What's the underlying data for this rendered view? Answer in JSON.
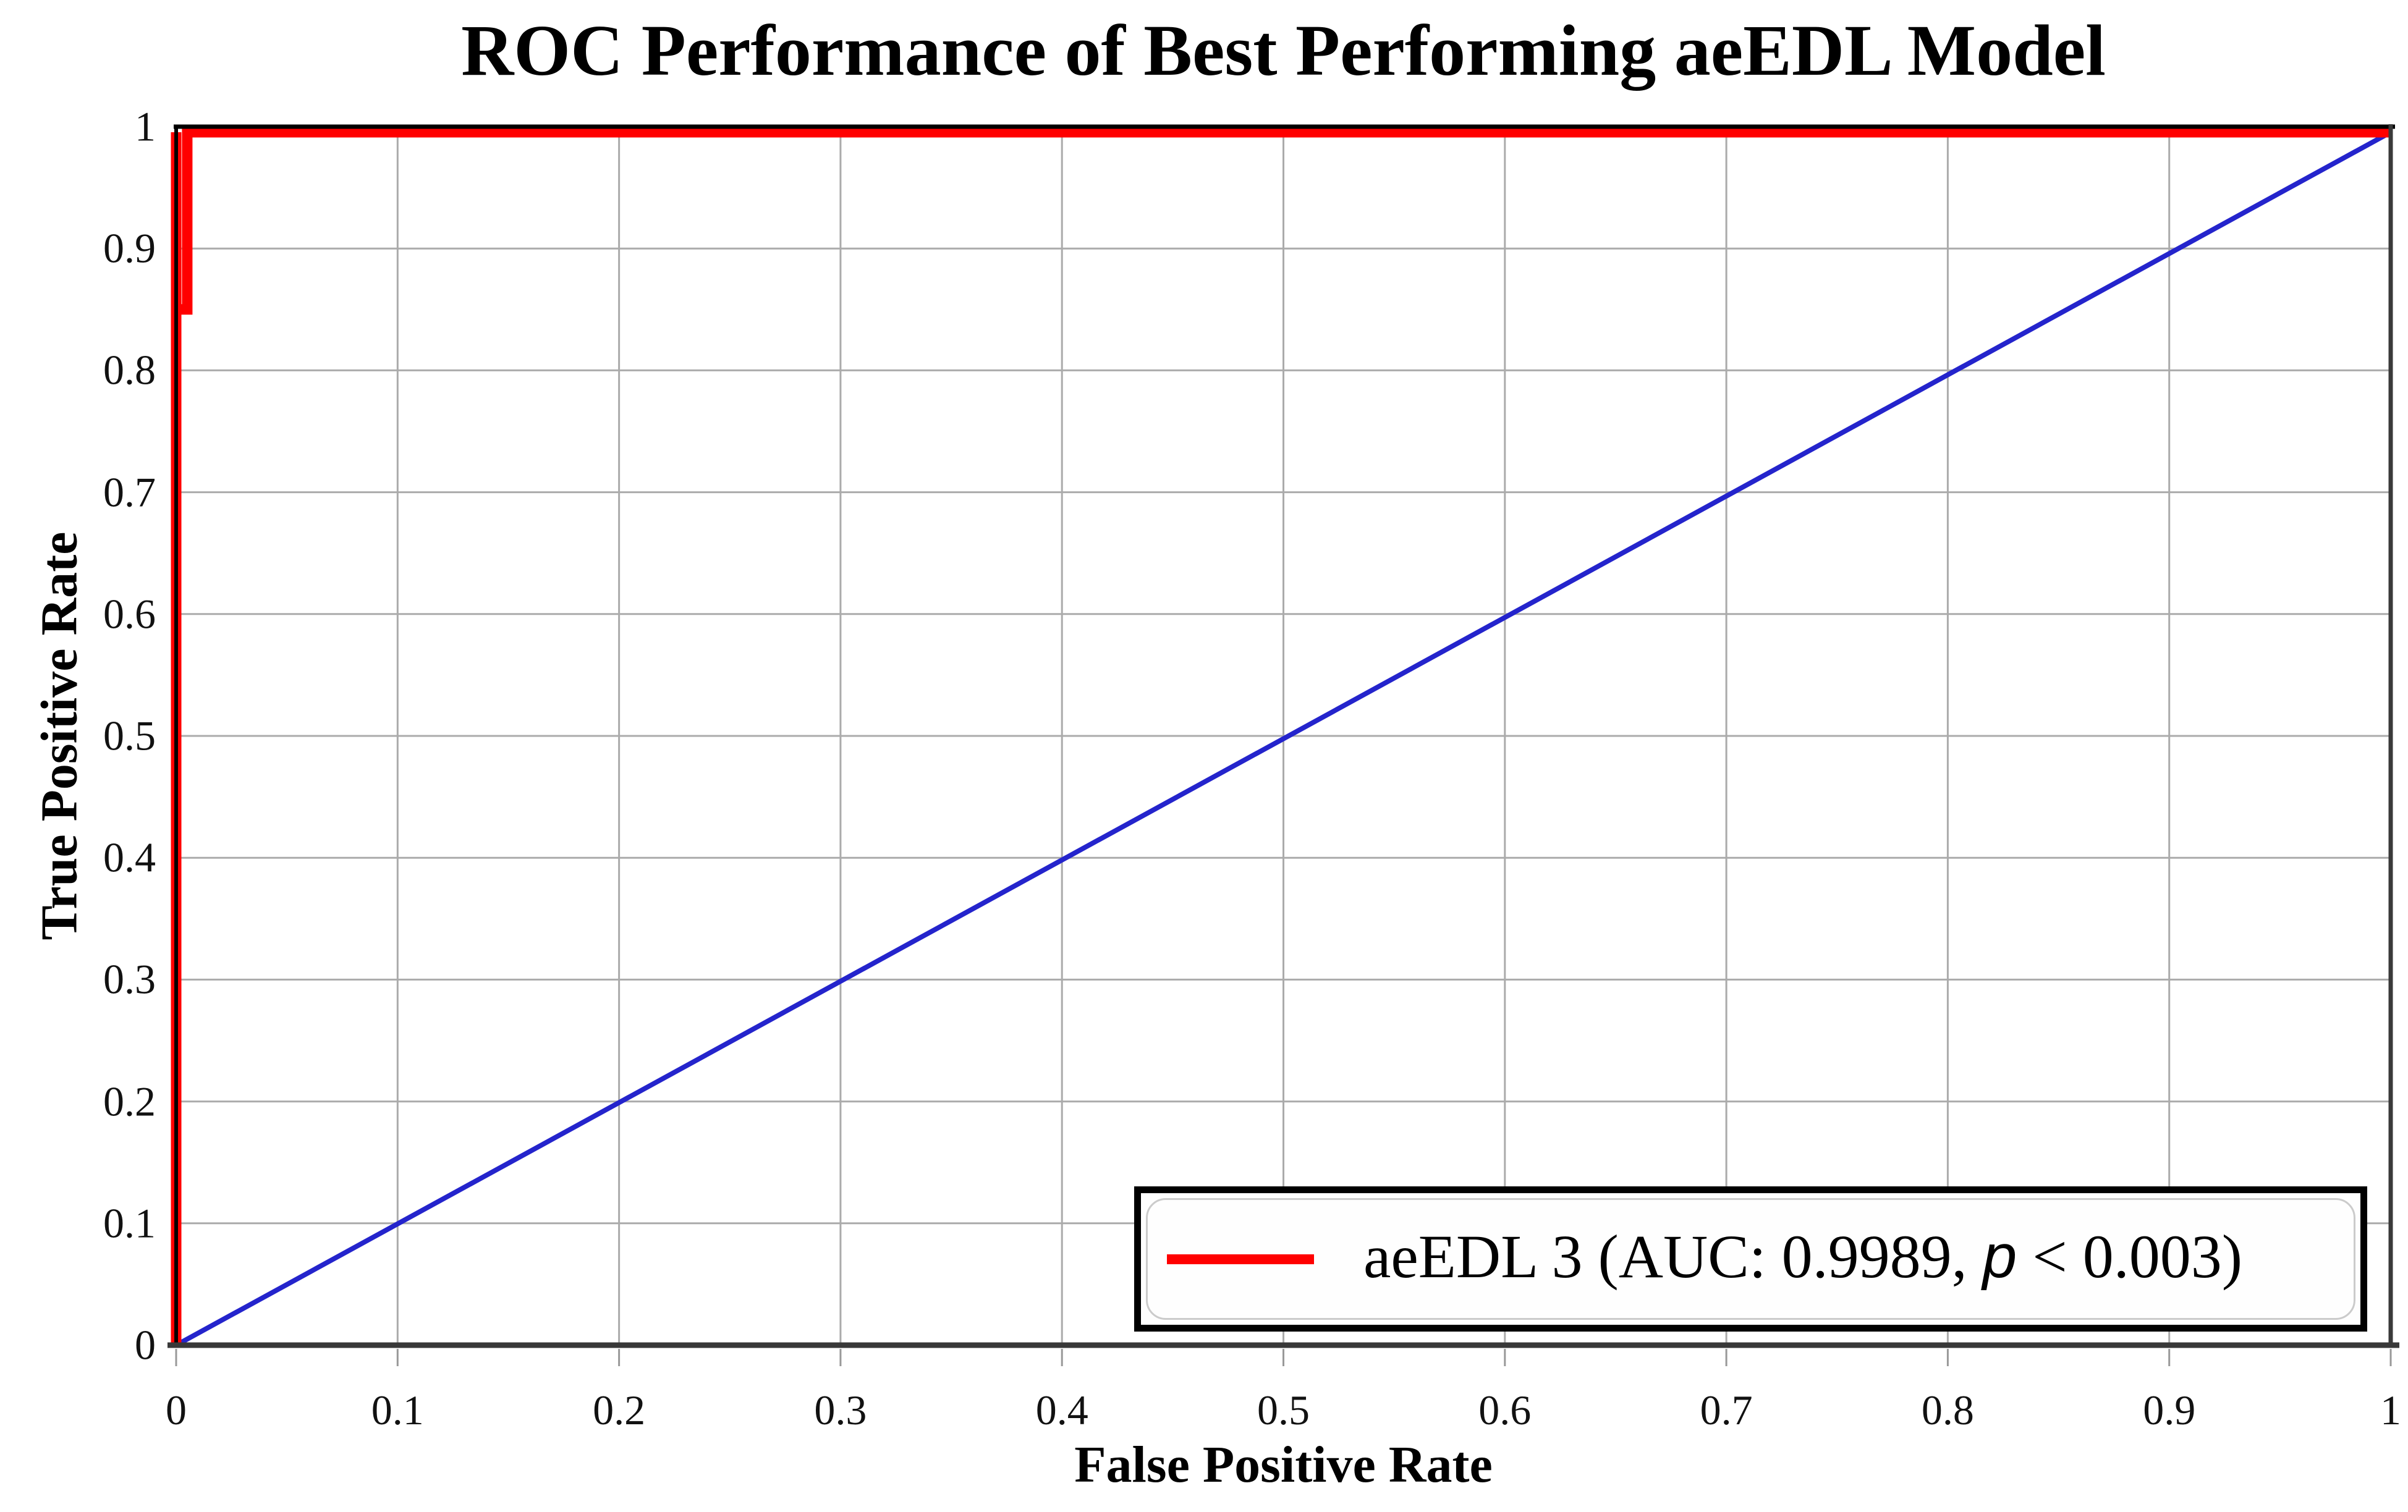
{
  "title": "ROC Performance of Best Performing aeEDL Model",
  "axes": {
    "x_label": "False Positive Rate",
    "y_label": "True Positive Rate"
  },
  "legend": {
    "series_label_pre": "aeEDL 3 (AUC: 0.9989, ",
    "p_symbol": "p",
    "series_label_post": " < 0.003)",
    "full_label": "aeEDL 3 (AUC: 0.9989, p < 0.003)",
    "line_color": "#ff0000"
  },
  "chart_data": {
    "type": "line",
    "title": "ROC Performance of Best Performing aeEDL Model",
    "xlabel": "False Positive Rate",
    "ylabel": "True Positive Rate",
    "xlim": [
      0,
      1
    ],
    "ylim": [
      0,
      1
    ],
    "x_tick_labels": [
      "0",
      "0.1",
      "0.2",
      "0.3",
      "0.4",
      "0.5",
      "0.6",
      "0.7",
      "0.8",
      "0.9",
      "1"
    ],
    "y_tick_labels": [
      "0",
      "0.1",
      "0.2",
      "0.3",
      "0.4",
      "0.5",
      "0.6",
      "0.7",
      "0.8",
      "0.9",
      "1"
    ],
    "grid": true,
    "grid_color": "#ababab",
    "legend_position": "lower right",
    "series": [
      {
        "name": "aeEDL 3",
        "auc": "0.9989",
        "significance": "p < 0.003",
        "color": "#ff0000",
        "line_width": 17,
        "points": [
          [
            0,
            0
          ],
          [
            0,
            1
          ],
          [
            0,
            0.85
          ],
          [
            0.005,
            0.85
          ],
          [
            0.005,
            1
          ],
          [
            1,
            1
          ]
        ]
      }
    ],
    "reference_line": {
      "name": "chance line",
      "color": "#2424cc",
      "line_width": 8,
      "points": [
        [
          0,
          0
        ],
        [
          1,
          1
        ]
      ]
    },
    "colors": {
      "axis_bottom": "#383838",
      "axis_right": "#3a3a3a",
      "axis_top": "#000000",
      "axis_left": "#000000",
      "tick_stub": "#999999"
    }
  }
}
